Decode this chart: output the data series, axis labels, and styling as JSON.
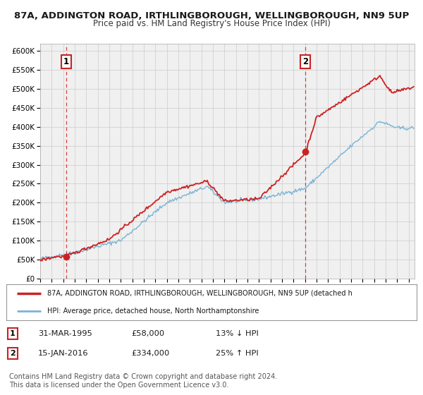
{
  "title1": "87A, ADDINGTON ROAD, IRTHLINGBOROUGH, WELLINGBOROUGH, NN9 5UP",
  "title2": "Price paid vs. HM Land Registry's House Price Index (HPI)",
  "legend_label1": "87A, ADDINGTON ROAD, IRTHLINGBOROUGH, WELLINGBOROUGH, NN9 5UP (detached h",
  "legend_label2": "HPI: Average price, detached house, North Northamptonshire",
  "ylim": [
    0,
    620000
  ],
  "yticks": [
    0,
    50000,
    100000,
    150000,
    200000,
    250000,
    300000,
    350000,
    400000,
    450000,
    500000,
    550000,
    600000
  ],
  "ytick_labels": [
    "£0",
    "£50K",
    "£100K",
    "£150K",
    "£200K",
    "£250K",
    "£300K",
    "£350K",
    "£400K",
    "£450K",
    "£500K",
    "£550K",
    "£600K"
  ],
  "sale1_x": 1995.25,
  "sale1_y": 58000,
  "sale1_label": "1",
  "sale1_date": "31-MAR-1995",
  "sale1_price": "£58,000",
  "sale1_hpi": "13% ↓ HPI",
  "sale2_x": 2016.04,
  "sale2_y": 334000,
  "sale2_label": "2",
  "sale2_date": "15-JAN-2016",
  "sale2_price": "£334,000",
  "sale2_hpi": "25% ↑ HPI",
  "hpi_color": "#7ab3d4",
  "price_color": "#cc2222",
  "vline_color": "#cc2222",
  "grid_color": "#cccccc",
  "background_color": "#ffffff",
  "plot_bg_color": "#f0f0f0",
  "copyright_text": "Contains HM Land Registry data © Crown copyright and database right 2024.\nThis data is licensed under the Open Government Licence v3.0.",
  "footnote_fontsize": 7.0,
  "title_fontsize1": 9.5,
  "title_fontsize2": 8.5,
  "xmin": 1993,
  "xmax": 2025.5
}
